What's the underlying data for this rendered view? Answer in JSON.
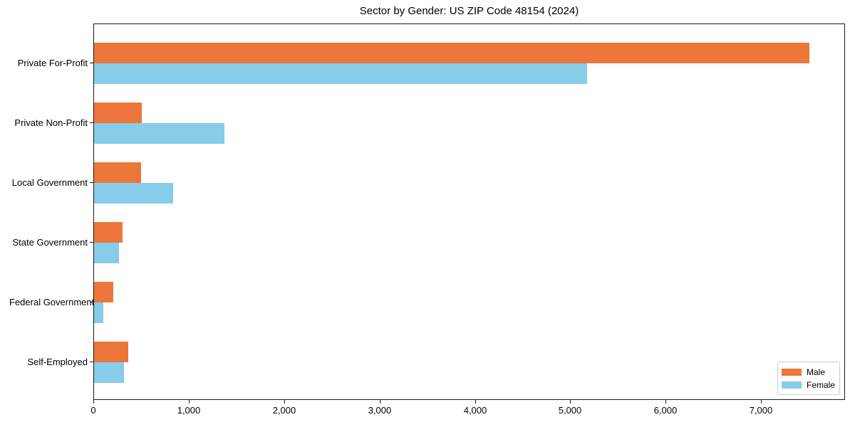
{
  "title": "Sector by Gender: US ZIP Code 48154 (2024)",
  "chart_data": {
    "type": "bar",
    "orientation": "horizontal",
    "title": "Sector by Gender: US ZIP Code 48154 (2024)",
    "categories": [
      "Private For-Profit",
      "Private Non-Profit",
      "Local Government",
      "State Government",
      "Federal Government",
      "Self-Employed"
    ],
    "series": [
      {
        "name": "Male",
        "color": "#ED763B",
        "values": [
          7500,
          500,
          490,
          300,
          200,
          360
        ]
      },
      {
        "name": "Female",
        "color": "#87CCE8",
        "values": [
          5170,
          1370,
          830,
          260,
          100,
          310
        ]
      }
    ],
    "xlabel": "",
    "ylabel": "",
    "xlim": [
      0,
      7880
    ],
    "xticks": [
      0,
      1000,
      2000,
      3000,
      4000,
      5000,
      6000,
      7000
    ],
    "xtick_labels": [
      "0",
      "1,000",
      "2,000",
      "3,000",
      "4,000",
      "5,000",
      "6,000",
      "7,000"
    ],
    "grid": false,
    "legend": {
      "position": "lower right"
    }
  }
}
